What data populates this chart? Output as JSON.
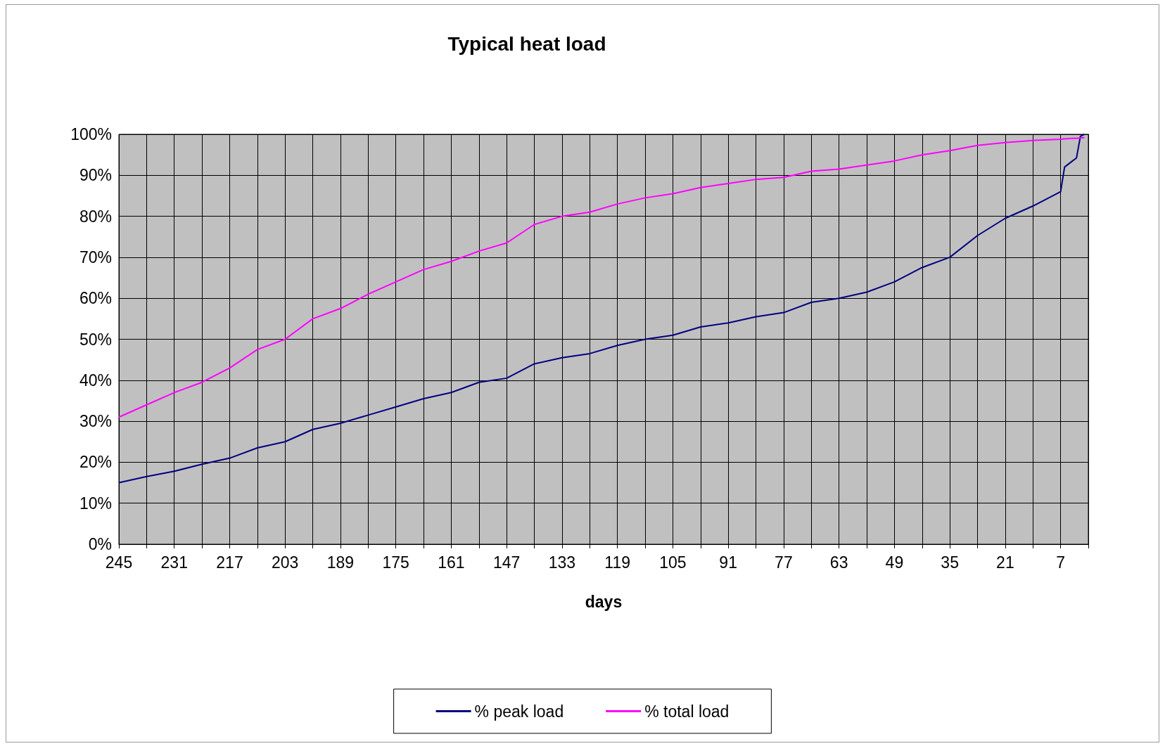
{
  "chart_data": {
    "type": "line",
    "title": "Typical heat load",
    "xlabel": "days",
    "x": [
      245,
      238,
      231,
      224,
      217,
      210,
      203,
      196,
      189,
      182,
      175,
      168,
      161,
      154,
      147,
      140,
      133,
      126,
      119,
      112,
      105,
      98,
      91,
      84,
      77,
      70,
      63,
      56,
      49,
      42,
      35,
      28,
      21,
      14,
      7,
      6,
      4,
      3,
      2,
      1
    ],
    "series": [
      {
        "name": "% peak load",
        "color": "#000080",
        "values": [
          15,
          16.5,
          17.8,
          19.5,
          21,
          23.5,
          25,
          28,
          29.5,
          31.5,
          33.5,
          35.5,
          37,
          39.5,
          40.5,
          44,
          45.5,
          46.5,
          48.5,
          50,
          51,
          53,
          54,
          55.5,
          56.5,
          59,
          60,
          61.5,
          64,
          67.5,
          70,
          75.3,
          79.5,
          82.5,
          86,
          92,
          93.5,
          94.2,
          99.5,
          100
        ]
      },
      {
        "name": "% total load",
        "color": "#ff00ff",
        "values": [
          31,
          34,
          37,
          39.5,
          43,
          47.5,
          50,
          55,
          57.5,
          61,
          64,
          67,
          69,
          71.5,
          73.5,
          78,
          80,
          81,
          83,
          84.5,
          85.5,
          87,
          88,
          89,
          89.5,
          91,
          91.5,
          92.5,
          93.5,
          95,
          96,
          97.3,
          98,
          98.5,
          98.8,
          98.9,
          99,
          99,
          99.1,
          99.2
        ]
      }
    ],
    "xlim": [
      245,
      0
    ],
    "xticks": [
      245,
      {
        "value": 238,
        "label": null
      },
      231,
      {
        "value": 224,
        "label": null
      },
      217,
      {
        "value": 210,
        "label": null
      },
      203,
      {
        "value": 196,
        "label": null
      },
      189,
      {
        "value": 182,
        "label": null
      },
      175,
      {
        "value": 168,
        "label": null
      },
      161,
      {
        "value": 154,
        "label": null
      },
      147,
      {
        "value": 140,
        "label": null
      },
      133,
      {
        "value": 126,
        "label": null
      },
      119,
      {
        "value": 112,
        "label": null
      },
      105,
      {
        "value": 98,
        "label": null
      },
      91,
      {
        "value": 84,
        "label": null
      },
      77,
      {
        "value": 70,
        "label": null
      },
      63,
      {
        "value": 56,
        "label": null
      },
      49,
      {
        "value": 42,
        "label": null
      },
      35,
      {
        "value": 28,
        "label": null
      },
      21,
      {
        "value": 14,
        "label": null
      },
      7,
      {
        "value": 0,
        "label": null
      }
    ],
    "ylim": [
      0,
      100
    ],
    "yticks": [
      {
        "value": 0,
        "label": "0%"
      },
      {
        "value": 10,
        "label": "10%"
      },
      {
        "value": 20,
        "label": "20%"
      },
      {
        "value": 30,
        "label": "30%"
      },
      {
        "value": 40,
        "label": "40%"
      },
      {
        "value": 50,
        "label": "50%"
      },
      {
        "value": 60,
        "label": "60%"
      },
      {
        "value": 70,
        "label": "70%"
      },
      {
        "value": 80,
        "label": "80%"
      },
      {
        "value": 90,
        "label": "90%"
      },
      {
        "value": 100,
        "label": "100%"
      }
    ],
    "grid": true,
    "legend": "bottom",
    "marker": "none",
    "line_style": "solid"
  }
}
